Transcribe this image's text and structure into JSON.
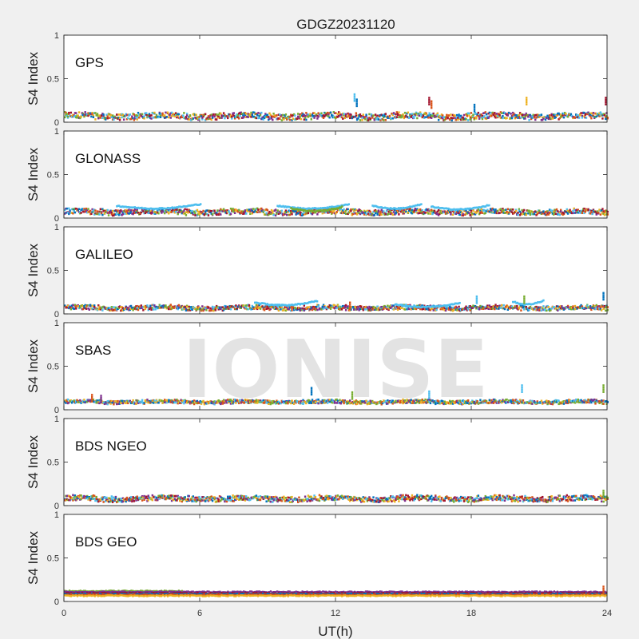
{
  "figure": {
    "title": "GDGZ20231120",
    "watermark": "IONISE",
    "background": "#f0f0f0"
  },
  "chart_data": {
    "type": "scatter",
    "title": "GDGZ20231120",
    "xlabel": "UT(h)",
    "ylabel": "S4 Index",
    "xlim": [
      0,
      24
    ],
    "ylim": [
      0,
      1
    ],
    "xticks": [
      "0",
      "6",
      "12",
      "18",
      "24"
    ],
    "yticks": [
      "0",
      "0.5",
      "1"
    ],
    "color_order": [
      "#0072BD",
      "#D95319",
      "#EDB120",
      "#7E2F8E",
      "#77AC30",
      "#4DBEEE",
      "#A2142F"
    ],
    "panels": [
      {
        "label": "GPS",
        "baseline": 0.07,
        "spread": 0.035,
        "colors": [
          "#0072BD",
          "#D95319",
          "#EDB120",
          "#7E2F8E",
          "#77AC30",
          "#4DBEEE",
          "#A2142F"
        ],
        "spikes": [
          {
            "x": 12.8,
            "y": 0.32,
            "color": "#4DBEEE"
          },
          {
            "x": 12.9,
            "y": 0.26,
            "color": "#0072BD"
          },
          {
            "x": 16.1,
            "y": 0.28,
            "color": "#A2142F"
          },
          {
            "x": 16.2,
            "y": 0.24,
            "color": "#D95319"
          },
          {
            "x": 18.1,
            "y": 0.2,
            "color": "#0072BD"
          },
          {
            "x": 20.4,
            "y": 0.28,
            "color": "#EDB120"
          },
          {
            "x": 23.9,
            "y": 0.28,
            "color": "#A2142F"
          }
        ]
      },
      {
        "label": "GLONASS",
        "baseline": 0.07,
        "spread": 0.03,
        "colors": [
          "#0072BD",
          "#D95319",
          "#EDB120",
          "#7E2F8E",
          "#77AC30",
          "#4DBEEE",
          "#A2142F"
        ],
        "arcs": [
          {
            "x0": 2.3,
            "x1": 6.0,
            "y": 0.16,
            "color": "#4DBEEE"
          },
          {
            "x0": 9.4,
            "x1": 12.6,
            "y": 0.16,
            "color": "#4DBEEE"
          },
          {
            "x0": 10.0,
            "x1": 12.3,
            "y": 0.13,
            "color": "#77AC30"
          },
          {
            "x0": 13.6,
            "x1": 15.8,
            "y": 0.16,
            "color": "#4DBEEE"
          },
          {
            "x0": 16.2,
            "x1": 18.8,
            "y": 0.15,
            "color": "#4DBEEE"
          }
        ],
        "spikes": []
      },
      {
        "label": "GALILEO",
        "baseline": 0.07,
        "spread": 0.025,
        "colors": [
          "#0072BD",
          "#D95319",
          "#EDB120",
          "#7E2F8E",
          "#77AC30",
          "#4DBEEE",
          "#A2142F"
        ],
        "arcs": [
          {
            "x0": 8.4,
            "x1": 11.2,
            "y": 0.15,
            "color": "#4DBEEE"
          },
          {
            "x0": 14.6,
            "x1": 17.5,
            "y": 0.13,
            "color": "#4DBEEE"
          },
          {
            "x0": 19.8,
            "x1": 21.2,
            "y": 0.16,
            "color": "#4DBEEE"
          }
        ],
        "spikes": [
          {
            "x": 12.6,
            "y": 0.13,
            "color": "#D95319"
          },
          {
            "x": 18.2,
            "y": 0.2,
            "color": "#4DBEEE"
          },
          {
            "x": 20.3,
            "y": 0.2,
            "color": "#77AC30"
          },
          {
            "x": 23.8,
            "y": 0.24,
            "color": "#0072BD"
          }
        ]
      },
      {
        "label": "SBAS",
        "baseline": 0.09,
        "spread": 0.02,
        "colors": [
          "#0072BD",
          "#4DBEEE",
          "#EDB120",
          "#7E2F8E",
          "#D95319",
          "#77AC30"
        ],
        "spikes": [
          {
            "x": 1.2,
            "y": 0.17,
            "color": "#D95319"
          },
          {
            "x": 1.6,
            "y": 0.16,
            "color": "#7E2F8E"
          },
          {
            "x": 10.9,
            "y": 0.25,
            "color": "#0072BD"
          },
          {
            "x": 12.7,
            "y": 0.2,
            "color": "#77AC30"
          },
          {
            "x": 16.1,
            "y": 0.21,
            "color": "#4DBEEE"
          },
          {
            "x": 20.2,
            "y": 0.28,
            "color": "#4DBEEE"
          },
          {
            "x": 23.8,
            "y": 0.28,
            "color": "#77AC30"
          }
        ]
      },
      {
        "label": "BDS NGEO",
        "baseline": 0.08,
        "spread": 0.03,
        "colors": [
          "#0072BD",
          "#D95319",
          "#EDB120",
          "#7E2F8E",
          "#77AC30",
          "#4DBEEE",
          "#A2142F"
        ],
        "spikes": [
          {
            "x": 23.8,
            "y": 0.17,
            "color": "#77AC30"
          }
        ]
      },
      {
        "label": "BDS GEO",
        "baseline": 0.1,
        "spread": 0.015,
        "colors": [
          "#77AC30",
          "#7E2F8E",
          "#A2142F",
          "#0072BD",
          "#D95319",
          "#EDB120"
        ],
        "bands": [
          {
            "y": 0.12,
            "color": "#77AC30",
            "x1": 5.2
          },
          {
            "y": 0.11,
            "color": "#7E2F8E"
          },
          {
            "y": 0.095,
            "color": "#A2142F"
          },
          {
            "y": 0.085,
            "color": "#0072BD"
          },
          {
            "y": 0.075,
            "color": "#D95319"
          },
          {
            "y": 0.065,
            "color": "#EDB120"
          }
        ],
        "spikes": [
          {
            "x": 23.8,
            "y": 0.17,
            "color": "#D95319"
          }
        ]
      }
    ]
  }
}
